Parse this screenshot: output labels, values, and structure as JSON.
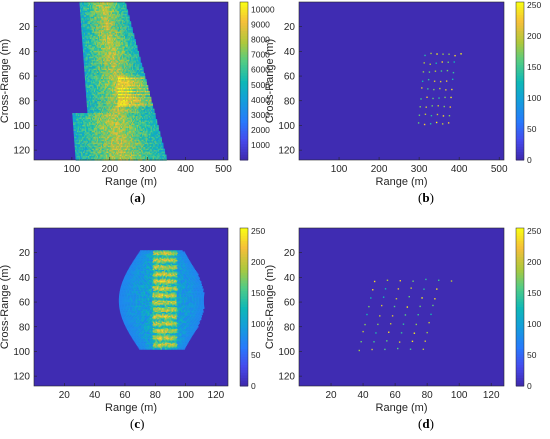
{
  "chart_data": [
    {
      "type": "heatmap",
      "panel_label": "a",
      "xlabel": "Range (m)",
      "ylabel": "Cross-Range (m)",
      "xlim": [
        0,
        512
      ],
      "ylim": [
        128,
        0
      ],
      "xticks": [
        "100",
        "200",
        "300",
        "400",
        "500"
      ],
      "yticks": [
        "20",
        "40",
        "60",
        "80",
        "100",
        "120"
      ],
      "colorbar": {
        "min": 0,
        "max": 10500,
        "ticks": [
          "1000",
          "2000",
          "3000",
          "4000",
          "5000",
          "6000",
          "7000",
          "8000",
          "9000",
          "10000"
        ]
      },
      "content": "dense-parallelogram"
    },
    {
      "type": "heatmap",
      "panel_label": "b",
      "xlabel": "Range (m)",
      "ylabel": "Cross-Range (m)",
      "xlim": [
        0,
        512
      ],
      "ylim": [
        128,
        0
      ],
      "xticks": [
        "100",
        "200",
        "300",
        "400",
        "500"
      ],
      "yticks": [
        "20",
        "40",
        "60",
        "80",
        "100",
        "120"
      ],
      "colorbar": {
        "min": 0,
        "max": 255,
        "ticks": [
          "0",
          "50",
          "100",
          "150",
          "200",
          "250"
        ]
      },
      "content": "sparse-points"
    },
    {
      "type": "heatmap",
      "panel_label": "c",
      "xlabel": "Range (m)",
      "ylabel": "Cross-Range (m)",
      "xlim": [
        0,
        128
      ],
      "ylim": [
        128,
        0
      ],
      "xticks": [
        "20",
        "40",
        "60",
        "80",
        "100",
        "120"
      ],
      "yticks": [
        "20",
        "40",
        "60",
        "80",
        "100",
        "120"
      ],
      "colorbar": {
        "min": 0,
        "max": 255,
        "ticks": [
          "0",
          "50",
          "100",
          "150",
          "200",
          "250"
        ]
      },
      "content": "blob"
    },
    {
      "type": "heatmap",
      "panel_label": "d",
      "xlabel": "Range (m)",
      "ylabel": "Cross-Range (m)",
      "xlim": [
        0,
        128
      ],
      "ylim": [
        128,
        0
      ],
      "xticks": [
        "20",
        "40",
        "60",
        "80",
        "100",
        "120"
      ],
      "yticks": [
        "20",
        "40",
        "60",
        "80",
        "100",
        "120"
      ],
      "colorbar": {
        "min": 0,
        "max": 255,
        "ticks": [
          "0",
          "50",
          "100",
          "150",
          "200",
          "250"
        ]
      },
      "content": "sparse-points"
    }
  ]
}
